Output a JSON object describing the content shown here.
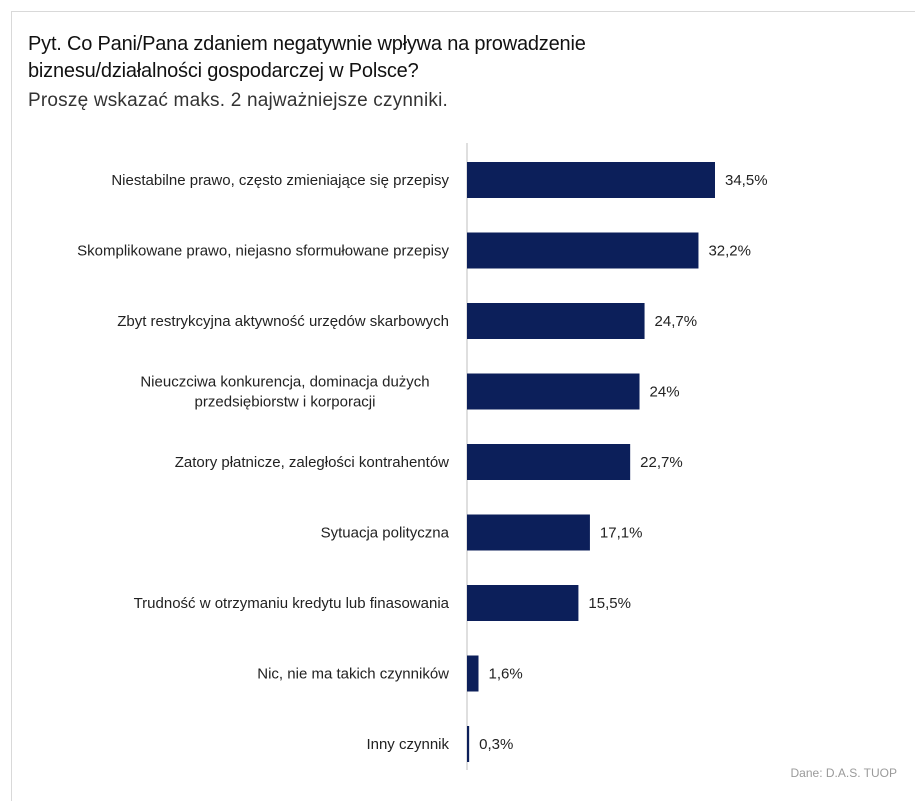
{
  "title": "Pyt. Co Pani/Pana zdaniem negatywnie wpływa na prowadzenie biznesu/działalności gospodarczej w Polsce?",
  "subtitle": "Proszę wskazać maks. 2 najważniejsze czynniki.",
  "source": "Dane: D.A.S. TUOP",
  "colors": {
    "bar": "#0c1f5a",
    "axis": "#bfbfbf"
  },
  "chart_data": {
    "type": "bar",
    "orientation": "horizontal",
    "categories": [
      "Niestabilne prawo, często zmieniające się przepisy",
      "Skomplikowane prawo, niejasno sformułowane przepisy",
      "Zbyt restrykcyjna aktywność urzędów skarbowych",
      [
        "Nieuczciwa konkurencja, dominacja dużych",
        "przedsiębiorstw i korporacji"
      ],
      "Zatory płatnicze, zaległości kontrahentów",
      "Sytuacja polityczna",
      "Trudność w otrzymaniu kredytu lub finasowania",
      "Nic, nie ma takich czynników",
      "Inny czynnik"
    ],
    "values": [
      34.5,
      32.2,
      24.7,
      24,
      22.7,
      17.1,
      15.5,
      1.6,
      0.3
    ],
    "value_labels": [
      "34,5%",
      "32,2%",
      "24,7%",
      "24%",
      "22,7%",
      "17,1%",
      "15,5%",
      "1,6%",
      "0,3%"
    ],
    "xlim": [
      0,
      34.5
    ],
    "grid": false,
    "legend": "none"
  }
}
